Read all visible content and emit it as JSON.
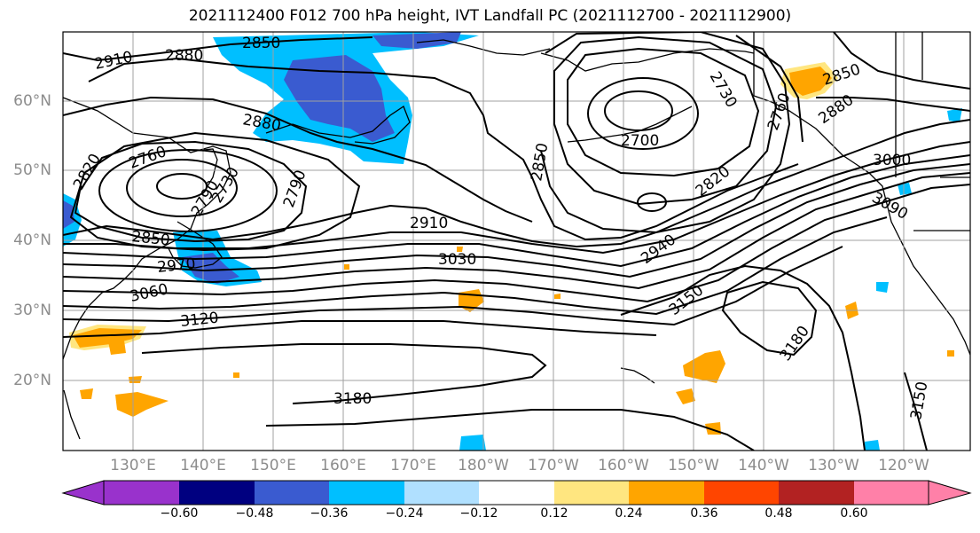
{
  "title": "2021112400 F012 700 hPa height, IVT Landfall PC (2021112700 - 2021112900)",
  "map": {
    "latitude_labels": [
      "60°N",
      "50°N",
      "40°N",
      "30°N",
      "20°N"
    ],
    "longitude_labels": [
      "130°E",
      "140°E",
      "150°E",
      "160°E",
      "170°E",
      "180°W",
      "170°W",
      "160°W",
      "150°W",
      "140°W",
      "130°W",
      "120°W"
    ],
    "contour_labels": [
      "2850",
      "2880",
      "2910",
      "2880",
      "2790",
      "2820",
      "2760",
      "2790",
      "2730",
      "2850",
      "2970",
      "2850",
      "2730",
      "2880",
      "2910",
      "3030",
      "3060",
      "3120",
      "2700",
      "2850",
      "2820",
      "2940",
      "3000",
      "3090",
      "3150",
      "3180",
      "3180",
      "3150",
      "2760"
    ],
    "colors": {
      "coast": "#000000",
      "grid": "#a0a0a0",
      "negative_shading": [
        "#00bfff",
        "#3a5bd0"
      ],
      "positive_shading": [
        "#ffe680",
        "#ffa500"
      ]
    }
  },
  "colorbar": {
    "ticks": [
      "−0.60",
      "−0.48",
      "−0.36",
      "−0.24",
      "−0.12",
      "0.12",
      "0.24",
      "0.36",
      "0.48",
      "0.60"
    ],
    "colors": [
      "#9932cc",
      "#000080",
      "#3a5bd0",
      "#00bfff",
      "#b0e0ff",
      "#ffffff",
      "#ffe680",
      "#ffa500",
      "#ff4500",
      "#b22222",
      "#ff80a8"
    ]
  }
}
